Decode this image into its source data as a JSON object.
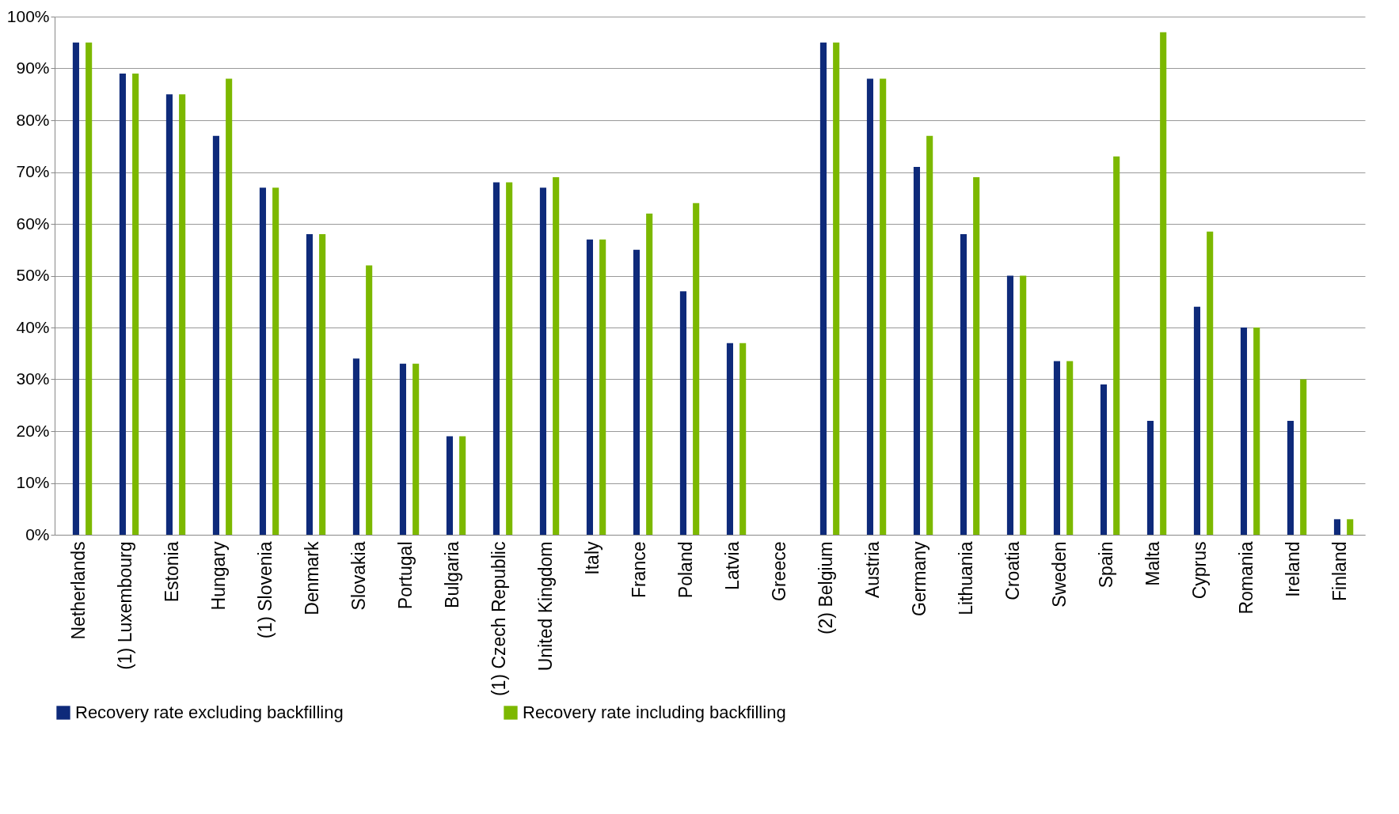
{
  "chart_data": {
    "type": "bar",
    "categories": [
      "Netherlands",
      "(1) Luxembourg",
      "Estonia",
      "Hungary",
      "(1) Slovenia",
      "Denmark",
      "Slovakia",
      "Portugal",
      "Bulgaria",
      "(1) Czech Republic",
      "United Kingdom",
      "Italy",
      "France",
      "Poland",
      "Latvia",
      "Greece",
      "(2) Belgium",
      "Austria",
      "Germany",
      "Lithuania",
      "Croatia",
      "Sweden",
      "Spain",
      "Malta",
      "Cyprus",
      "Romania",
      "Ireland",
      "Finland"
    ],
    "series": [
      {
        "name": "Recovery rate excluding backfilling",
        "color": "#0e2a7a",
        "values": [
          95,
          89,
          85,
          77,
          67,
          58,
          34,
          33,
          19,
          68,
          67,
          57,
          55,
          47,
          37,
          null,
          95,
          88,
          71,
          58,
          50,
          33.5,
          29,
          22,
          44,
          40,
          22,
          3
        ]
      },
      {
        "name": "Recovery rate including backfilling",
        "color": "#7cb800",
        "values": [
          95,
          89,
          85,
          88,
          67,
          58,
          52,
          33,
          19,
          68,
          69,
          57,
          62,
          64,
          37,
          null,
          95,
          88,
          77,
          69,
          50,
          33.5,
          73,
          97,
          58.5,
          40,
          30,
          3
        ]
      }
    ],
    "ylim": [
      0,
      100
    ],
    "yticks": [
      {
        "value": 0,
        "label": "0%"
      },
      {
        "value": 10,
        "label": "10%"
      },
      {
        "value": 20,
        "label": "20%"
      },
      {
        "value": 30,
        "label": "30%"
      },
      {
        "value": 40,
        "label": "40%"
      },
      {
        "value": 50,
        "label": "50%"
      },
      {
        "value": 60,
        "label": "60%"
      },
      {
        "value": 70,
        "label": "70%"
      },
      {
        "value": 80,
        "label": "80%"
      },
      {
        "value": 90,
        "label": "90%"
      },
      {
        "value": 100,
        "label": "100%"
      }
    ],
    "grid": "y",
    "legend": "bottom"
  }
}
